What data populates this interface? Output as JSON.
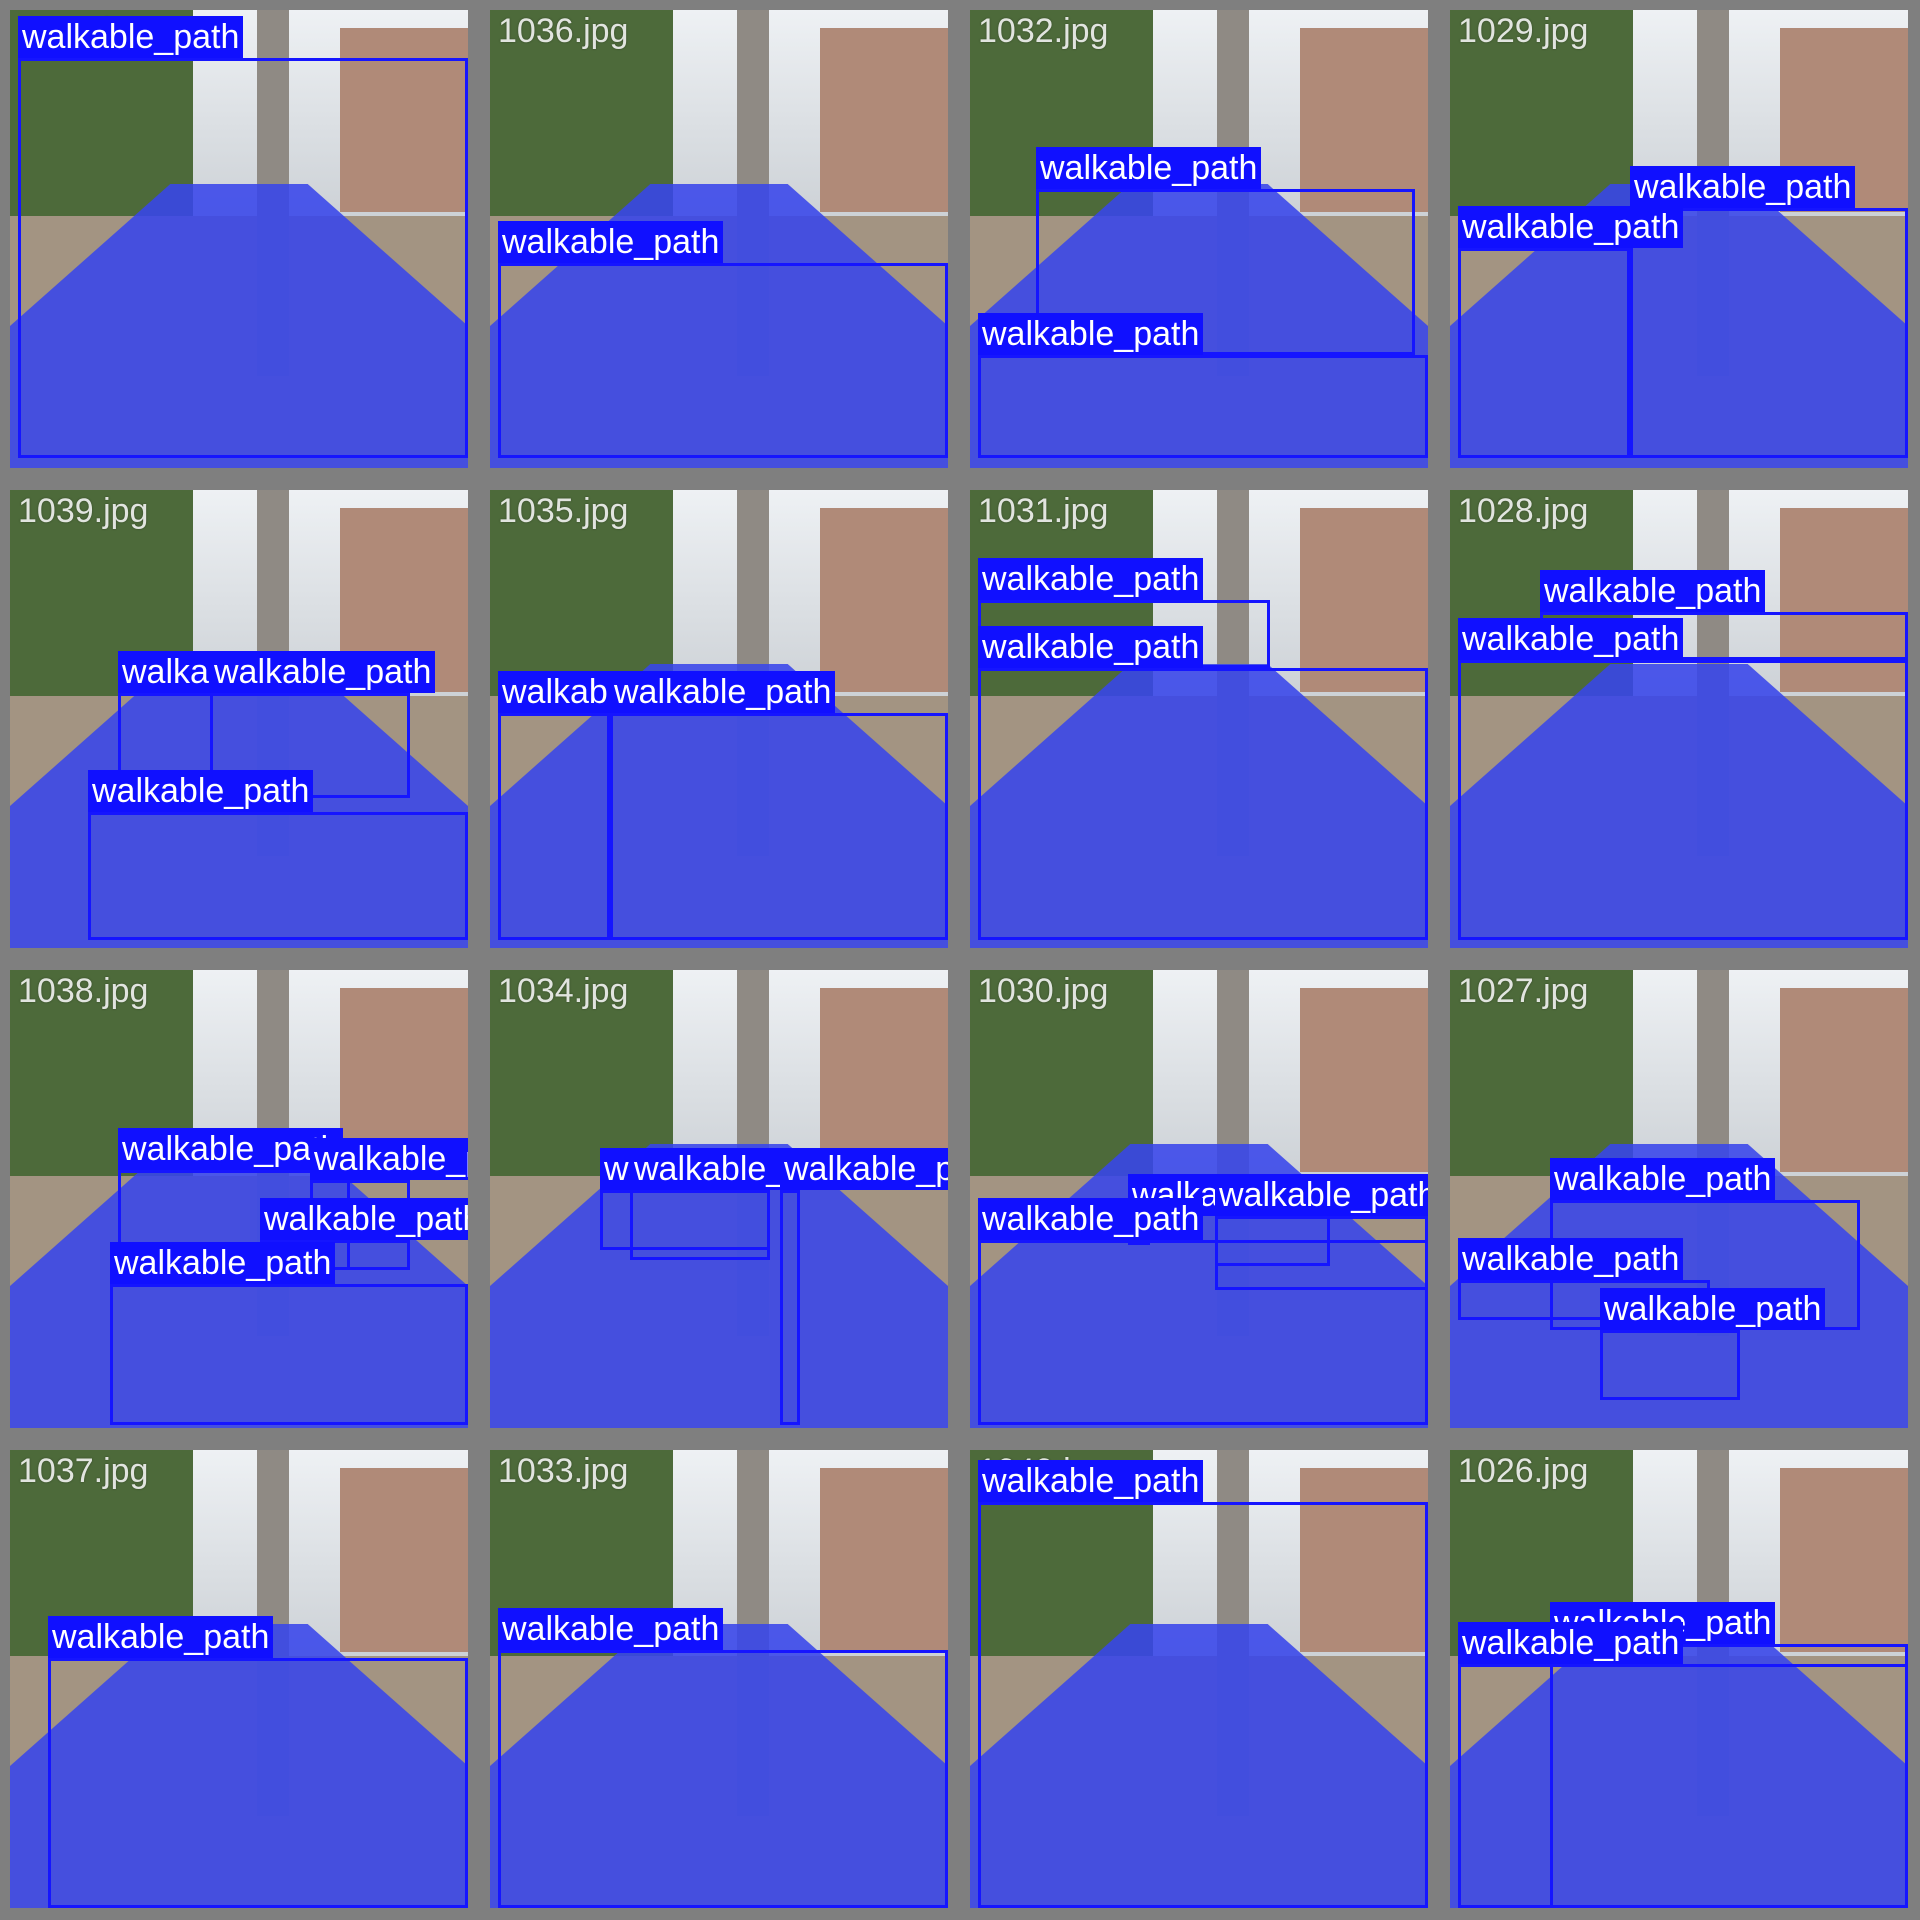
{
  "tiles": [
    {
      "file": "1040.jpg",
      "labels": [
        "walkable_path"
      ]
    },
    {
      "file": "1036.jpg",
      "labels": [
        "walkable_path"
      ]
    },
    {
      "file": "1032.jpg",
      "labels": [
        "walkable_path",
        "walkable_path"
      ]
    },
    {
      "file": "1029.jpg",
      "labels": [
        "walkable_path",
        "walkable_path",
        "walkable_path"
      ]
    },
    {
      "file": "1039.jpg",
      "labels": [
        "walkable_path",
        "walkable_path",
        "walkable_path"
      ]
    },
    {
      "file": "1035.jpg",
      "labels": [
        "walkable_path",
        "walkable_path"
      ]
    },
    {
      "file": "1031.jpg",
      "labels": [
        "walkable_path",
        "walkable_path"
      ]
    },
    {
      "file": "1028.jpg",
      "labels": [
        "walkable_path",
        "walkable_path"
      ]
    },
    {
      "file": "1038.jpg",
      "labels": [
        "walkable_path",
        "walkable_path",
        "walkable_path",
        "walkable_path"
      ]
    },
    {
      "file": "1034.jpg",
      "labels": [
        "walkable_path",
        "walkable_path",
        "walkable_path"
      ]
    },
    {
      "file": "1030.jpg",
      "labels": [
        "walkable_path",
        "walkable_path",
        "walkable_path",
        "walkable_path"
      ]
    },
    {
      "file": "1027.jpg",
      "labels": [
        "walkable_path",
        "walkable_path",
        "walkable_path"
      ]
    },
    {
      "file": "1037.jpg",
      "labels": [
        "walkable_path"
      ]
    },
    {
      "file": "1033.jpg",
      "labels": [
        "walkable_path"
      ]
    },
    {
      "file": "1040.jpg",
      "labels": [
        "walkable_path"
      ]
    },
    {
      "file": "1026.jpg",
      "labels": [
        "walkable_path",
        "walkable_path"
      ]
    }
  ],
  "colors": {
    "mask": "#3846eb",
    "box": "#1515ff",
    "label_bg": "#1010ff",
    "label_text": "#ffffff",
    "background": "#7f7f7f"
  }
}
